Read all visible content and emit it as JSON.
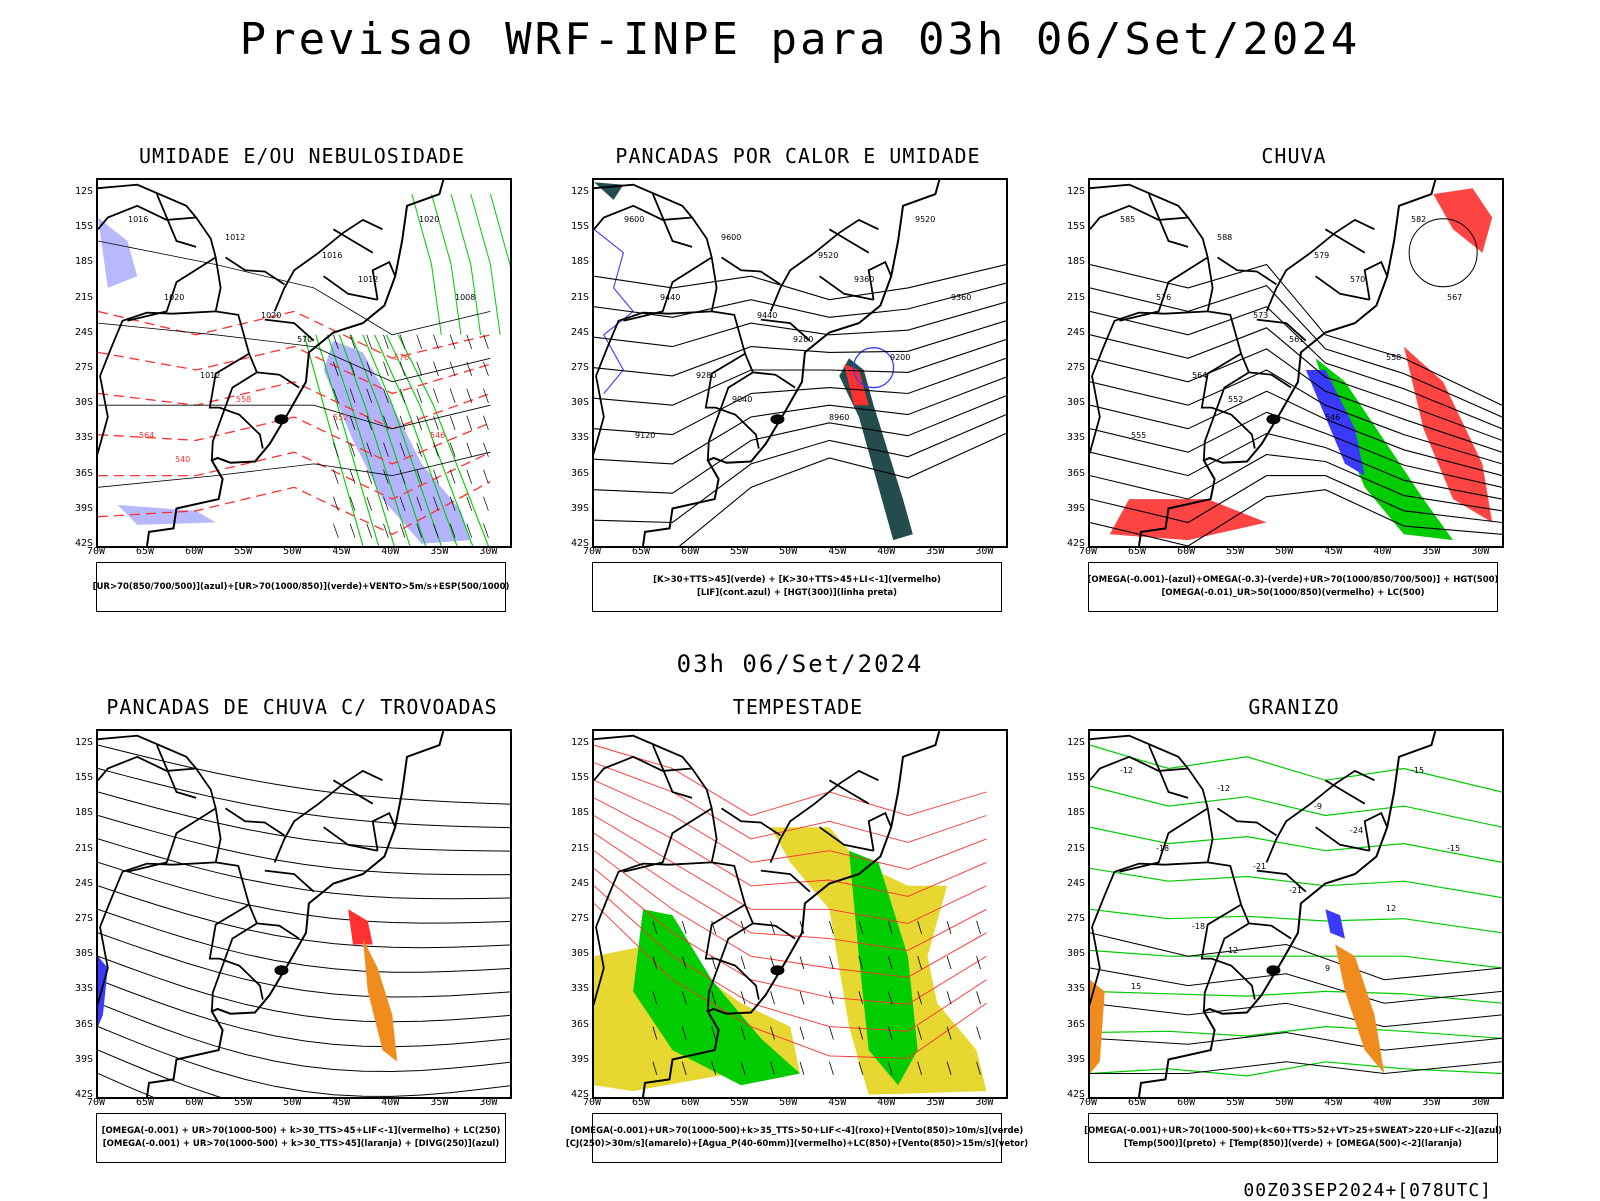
{
  "title": "Previsao WRF-INPE  para 03h 06/Set/2024",
  "mid_date": "03h 06/Set/2024",
  "footer": "00Z03SEP2024+[078UTC]",
  "axes": {
    "lat_labels": [
      "12S",
      "15S",
      "18S",
      "21S",
      "24S",
      "27S",
      "30S",
      "33S",
      "36S",
      "39S",
      "42S"
    ],
    "lon_labels": [
      "70W",
      "65W",
      "60W",
      "55W",
      "50W",
      "45W",
      "40W",
      "35W",
      "30W"
    ]
  },
  "colors": {
    "blue": "#3a3aff",
    "green": "#00cc00",
    "red": "#ff3030",
    "orange": "#f08c1e",
    "yellow": "#e6d830",
    "teal": "#244c4c",
    "lavender": "#9a9aff"
  },
  "panels": [
    {
      "id": "umidade",
      "title": "UMIDADE E/OU NEBULOSIDADE",
      "legend": [
        "[UR>70(850/700/500)](azul)+[UR>70(1000/850)](verde)+VENTO>5m/s+ESP(500/1000)"
      ],
      "contour_labels": [
        "1016",
        "1012",
        "1016",
        "1020",
        "1020",
        "1020",
        "1012",
        "1008",
        "1012",
        "570",
        "576",
        "564",
        "558",
        "552",
        "546",
        "540"
      ]
    },
    {
      "id": "pancadas-calor",
      "title": "PANCADAS POR CALOR E UMIDADE",
      "legend": [
        "[K>30+TTS>45](verde) + [K>30+TTS>45+LI<-1](vermelho)",
        "[LIF](cont.azul) + [HGT(300)](linha preta)"
      ],
      "contour_labels": [
        "9600",
        "9600",
        "9520",
        "9520",
        "9440",
        "9440",
        "9360",
        "9360",
        "9280",
        "9280",
        "9200",
        "9120",
        "9040",
        "8960"
      ]
    },
    {
      "id": "chuva",
      "title": "CHUVA",
      "legend": [
        "[OMEGA(-0.001)-(azul)+OMEGA(-0.3)-(verde)+UR>70(1000/850/700/500)] + HGT(500)",
        "[OMEGA(-0.01)_UR>50(1000/850)(vermelho) + LC(500)"
      ],
      "contour_labels": [
        "585",
        "588",
        "579",
        "582",
        "576",
        "573",
        "570",
        "567",
        "564",
        "561",
        "558",
        "555",
        "552",
        "546"
      ]
    },
    {
      "id": "trovoadas",
      "title": "PANCADAS DE CHUVA C/ TROVOADAS",
      "legend": [
        "[OMEGA(-0.001) + UR>70(1000-500) + k>30_TTS>45+LIF<-1](vermelho) + LC(250)",
        "[OMEGA(-0.001) + UR>70(1000-500) + k>30_TTS>45](laranja) + [DIVG(250)](azul)"
      ],
      "contour_labels": []
    },
    {
      "id": "tempestade",
      "title": "TEMPESTADE",
      "legend": [
        "[OMEGA(-0.001)+UR>70(1000-500)+k>35_TTS>50+LIF<-4](roxo)+[Vento(850)>10m/s](verde)",
        "[CJ(250)>30m/s](amarelo)+[Agua_P(40-60mm)](vermelho)+LC(850)+[Vento(850)>15m/s](vetor)"
      ],
      "contour_labels": []
    },
    {
      "id": "granizo",
      "title": "GRANIZO",
      "legend": [
        "[OMEGA(-0.001)+UR>70(1000-500)+k<60+TTS>52+VT>25+SWEAT>220+LIF<-2](azul)",
        "[Temp(500)](preto) + [Temp(850)](verde) + [OMEGA(500)<-2](laranja)"
      ],
      "contour_labels": [
        "-12",
        "-12",
        "-9",
        "-15",
        "-18",
        "-21",
        "-24",
        "-15",
        "-18",
        "-21",
        "12",
        "15",
        "12",
        "9"
      ]
    }
  ]
}
